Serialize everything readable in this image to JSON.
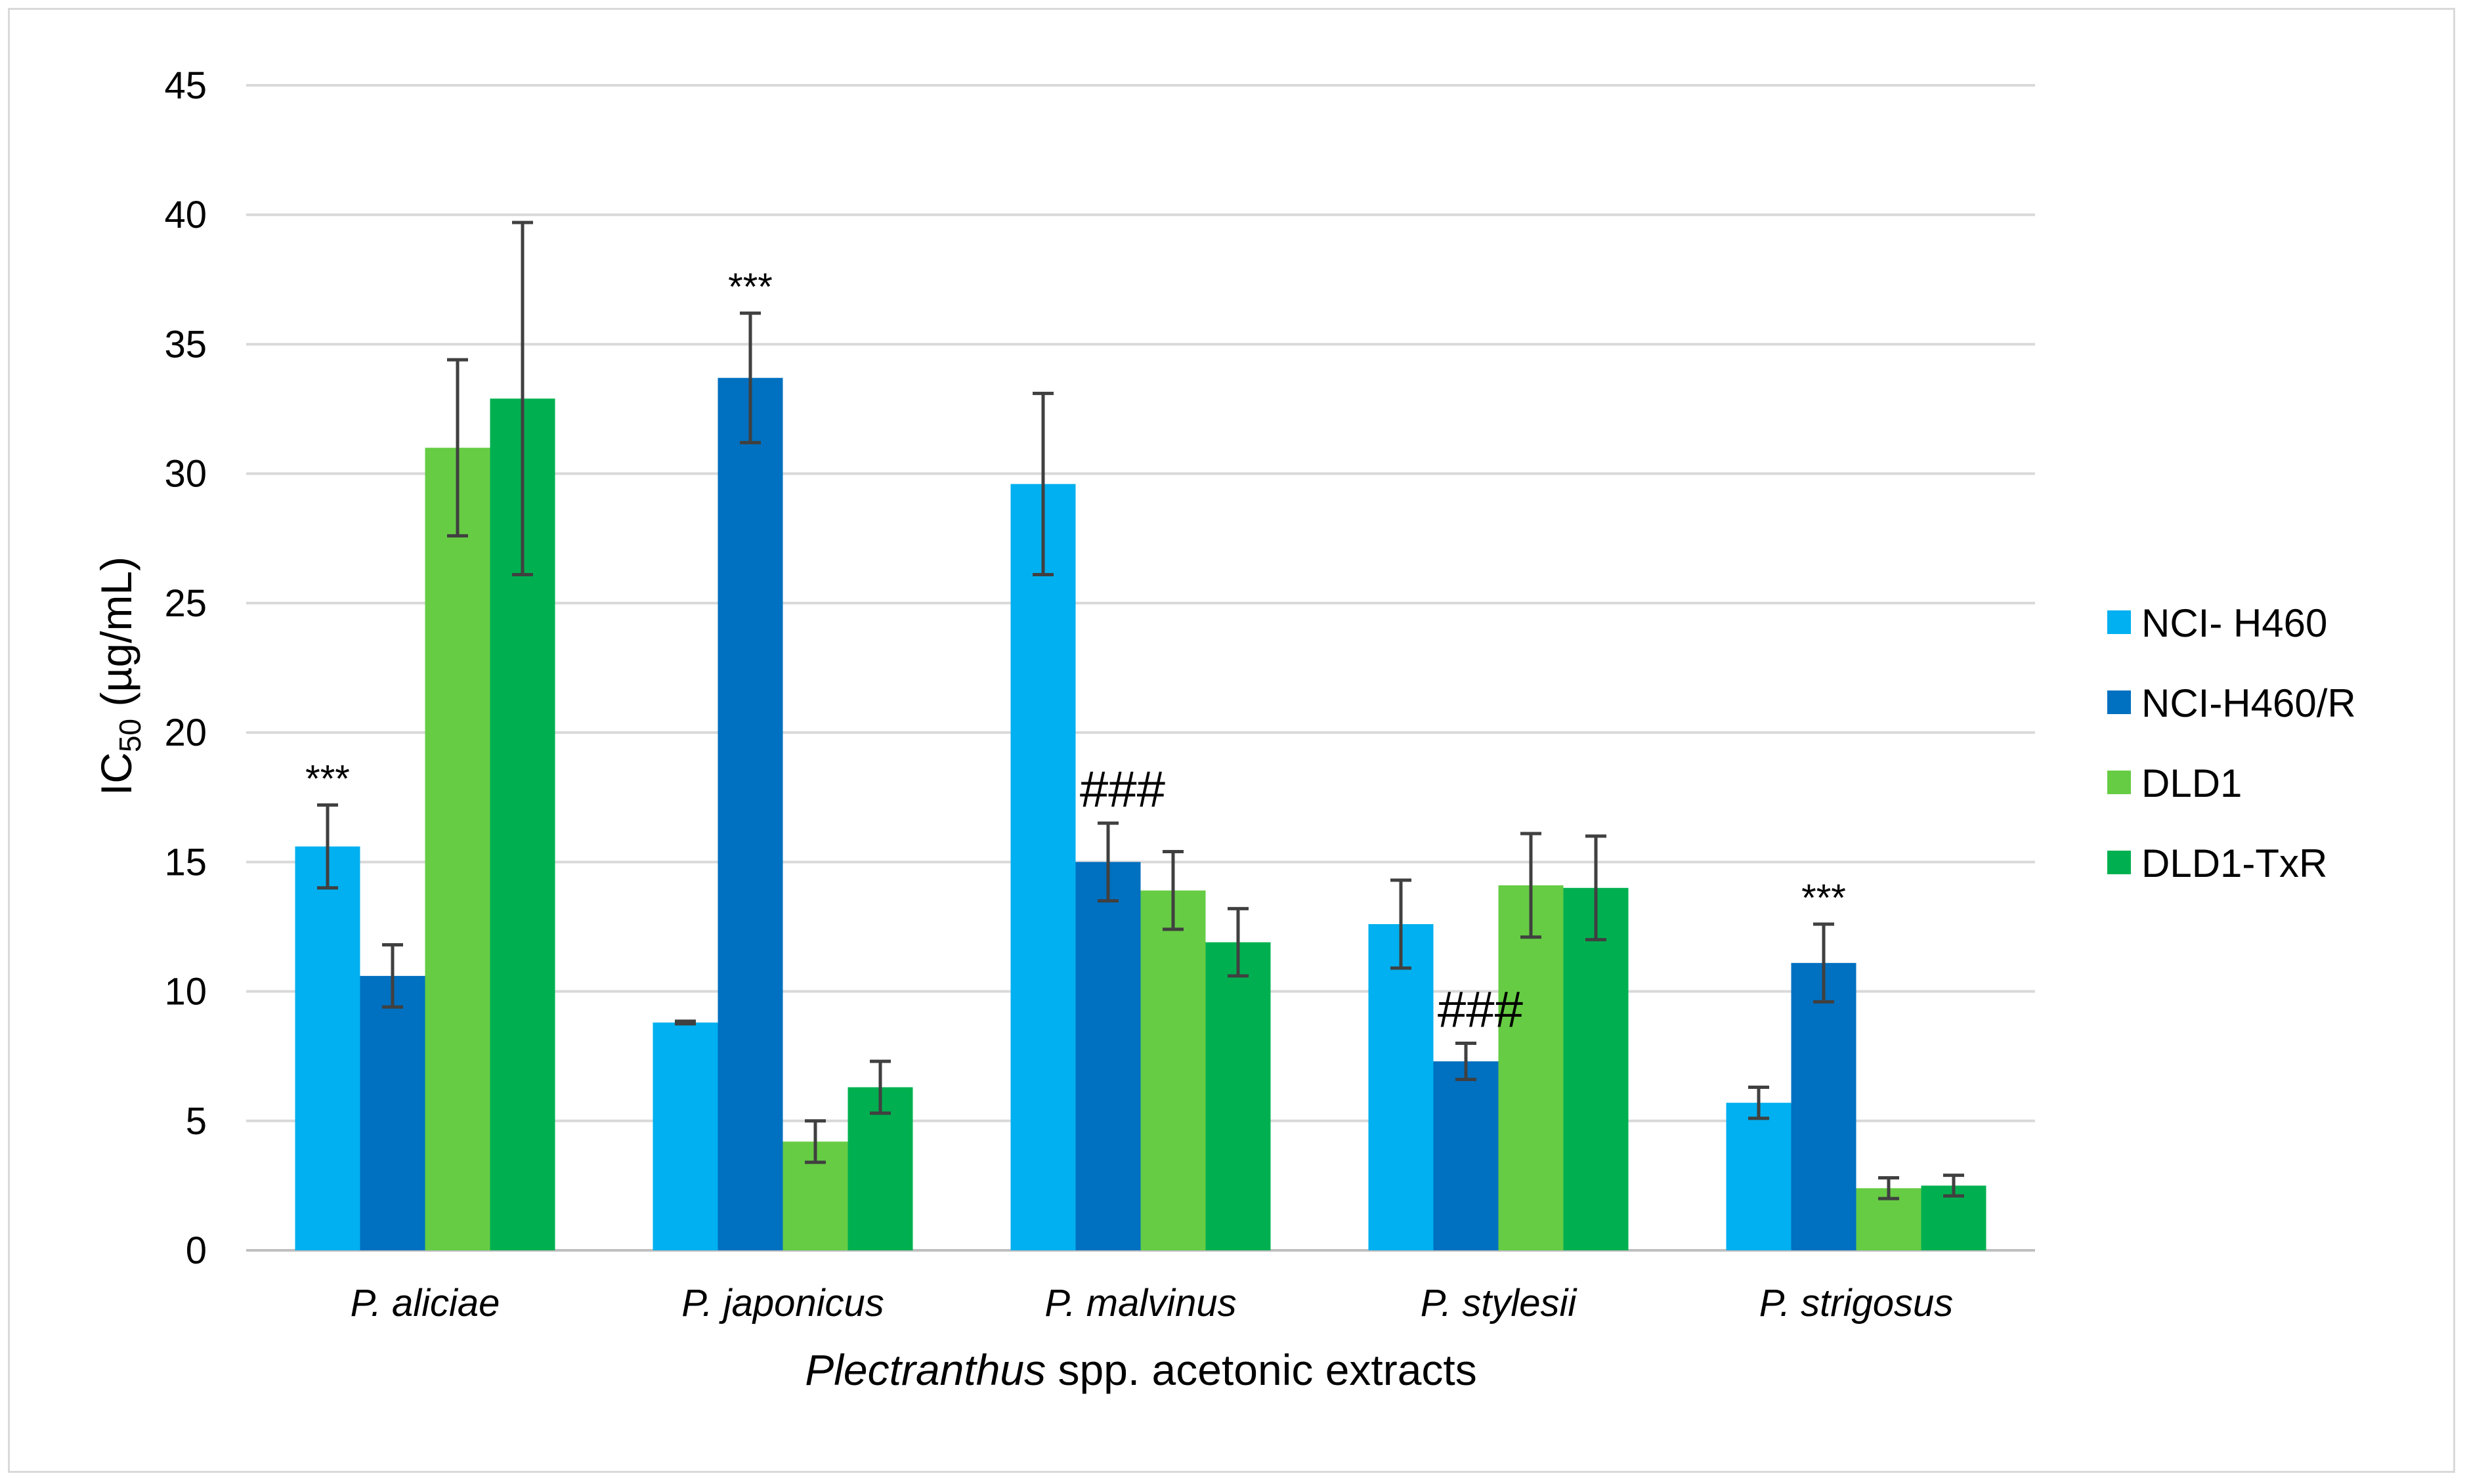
{
  "chart_data": {
    "type": "bar",
    "ylabel_main": "IC",
    "ylabel_sub": "50",
    "ylabel_unit": " (µg/mL)",
    "xlabel_italic": "Plectranthus",
    "xlabel_rest": " spp. acetonic extracts",
    "ylim": [
      0,
      45
    ],
    "yticks": [
      0,
      5,
      10,
      15,
      20,
      25,
      30,
      35,
      40,
      45
    ],
    "grid": true,
    "legend_position": "right",
    "categories": [
      "P. aliciae",
      "P. japonicus",
      "P. malvinus",
      "P. stylesii",
      "P. strigosus"
    ],
    "series": [
      {
        "name": "NCI- H460",
        "color": "#00B0F0",
        "values": [
          15.6,
          8.8,
          29.6,
          12.6,
          5.7
        ],
        "errors": [
          1.6,
          0.05,
          3.5,
          1.7,
          0.6
        ]
      },
      {
        "name": "NCI-H460/R",
        "color": "#0070C0",
        "values": [
          10.6,
          33.7,
          15.0,
          7.3,
          11.1
        ],
        "errors": [
          1.2,
          2.5,
          1.5,
          0.7,
          1.5
        ]
      },
      {
        "name": "DLD1",
        "color": "#66CC44",
        "values": [
          31.0,
          4.2,
          13.9,
          14.1,
          2.4
        ],
        "errors": [
          3.4,
          0.8,
          1.5,
          2.0,
          0.4
        ]
      },
      {
        "name": "DLD1-TxR",
        "color": "#00B050",
        "values": [
          32.9,
          6.3,
          11.9,
          14.0,
          2.5
        ],
        "errors": [
          6.8,
          1.0,
          1.3,
          2.0,
          0.4
        ]
      }
    ],
    "annotations": [
      {
        "category": "P. aliciae",
        "series": "NCI- H460",
        "text": "***"
      },
      {
        "category": "P. japonicus",
        "series": "NCI-H460/R",
        "text": "***"
      },
      {
        "category": "P. malvinus",
        "series": "NCI-H460/R",
        "text": "###"
      },
      {
        "category": "P. stylesii",
        "series": "NCI-H460/R",
        "text": "###"
      },
      {
        "category": "P. strigosus",
        "series": "NCI-H460/R",
        "text": "***"
      }
    ]
  }
}
